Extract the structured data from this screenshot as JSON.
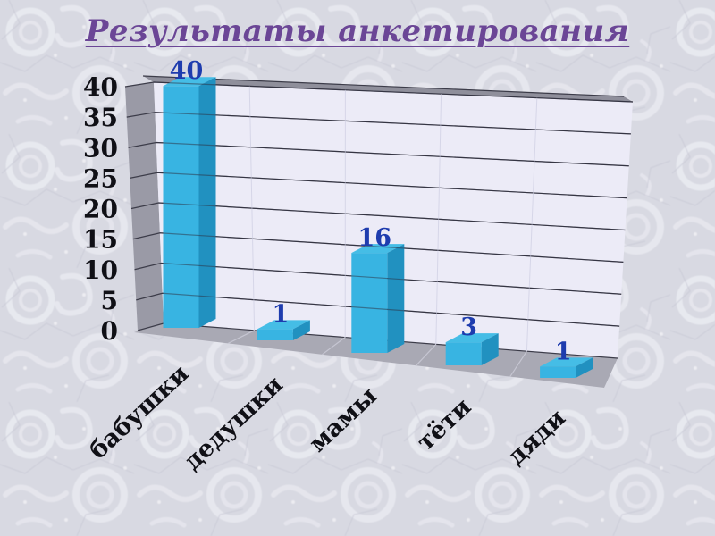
{
  "slide": {
    "title": "Результаты анкетирования",
    "title_color": "#6b4696",
    "background_color": "#d8d9e2"
  },
  "chart_data": {
    "type": "bar",
    "projection": "3d",
    "title": "",
    "categories": [
      "бабушки",
      "дедушки",
      "мамы",
      "тёти",
      "дяди"
    ],
    "values": [
      40,
      1,
      16,
      3,
      1
    ],
    "value_labels": [
      "40",
      "1",
      "16",
      "3",
      "1"
    ],
    "y_ticks": [
      0,
      5,
      10,
      15,
      20,
      25,
      30,
      35,
      40
    ],
    "ylim": [
      0,
      40
    ],
    "xlabel": "",
    "ylabel": "",
    "grid": true,
    "legend": "none",
    "colors": {
      "bar_front": "#38b4e2",
      "bar_top": "#45bde6",
      "bar_side": "#2191c0",
      "back_wall": "#ecebf7",
      "side_wall": "#9a9aa6",
      "wall_top_strip": "#8f8f9b",
      "floor": "#a9a9b4",
      "gridline": "#3c3c49",
      "wall_divider": "#d6d6e8",
      "floor_divider": "#c6c6d2",
      "value_label": "#1e3cae",
      "axis_text": "#101016"
    }
  }
}
